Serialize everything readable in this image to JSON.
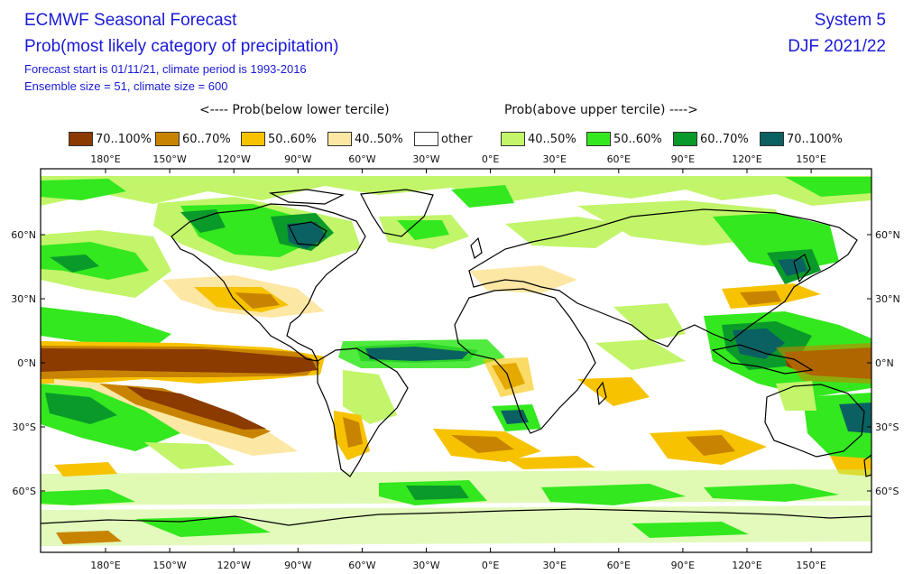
{
  "header": {
    "title": "ECMWF Seasonal Forecast",
    "subtitle": "Prob(most likely category of precipitation)",
    "line3": "Forecast start is 01/11/21, climate period is 1993-2016",
    "line4": "Ensemble size = 51, climate size = 600",
    "system": "System 5",
    "season": "DJF 2021/22"
  },
  "legend": {
    "below_label": "<---- Prob(below lower tercile)",
    "above_label": "Prob(above upper tercile) ---->",
    "items": [
      {
        "label": "70..100%",
        "color": "#8b3a00"
      },
      {
        "label": "60..70%",
        "color": "#c88400"
      },
      {
        "label": "50..60%",
        "color": "#f7c300"
      },
      {
        "label": "40..50%",
        "color": "#fde7a4"
      },
      {
        "label": "other",
        "color": "#ffffff"
      },
      {
        "label": "40..50%",
        "color": "#c2f56a"
      },
      {
        "label": "50..60%",
        "color": "#33e81e"
      },
      {
        "label": "60..70%",
        "color": "#0a9a2a"
      },
      {
        "label": "70..100%",
        "color": "#0b6161"
      }
    ]
  },
  "axes": {
    "lon_ticks": [
      "180°E",
      "150°W",
      "120°W",
      "90°W",
      "60°W",
      "30°W",
      "0°E",
      "30°E",
      "60°E",
      "90°E",
      "120°E",
      "150°E"
    ],
    "lat_ticks": [
      "60°N",
      "30°N",
      "0°N",
      "30°S",
      "60°S"
    ]
  }
}
